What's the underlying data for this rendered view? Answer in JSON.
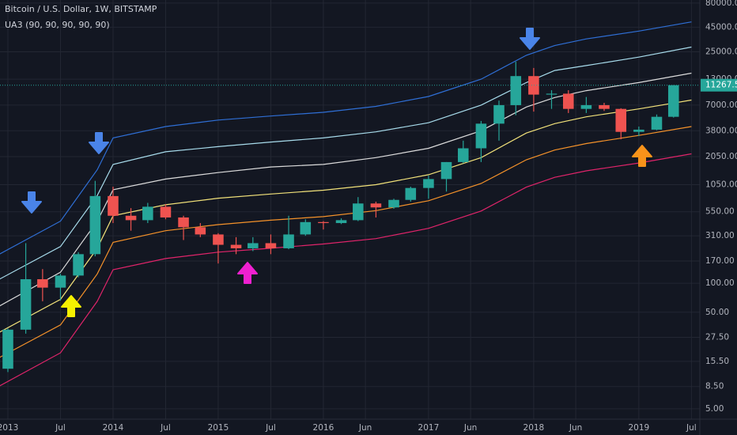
{
  "chart_data": {
    "type": "candlestick",
    "title": "Bitcoin / U.S. Dollar, 1W, BITSTAMP",
    "indicator": "UA3 (90, 90, 90, 90, 90)",
    "log_scale": true,
    "grid": true,
    "xlim": [
      2012.925,
      2019.58
    ],
    "ylim": [
      3.9,
      86000
    ],
    "xticks": [
      {
        "value": 2013,
        "label": "2013"
      },
      {
        "value": 2013.5,
        "label": "Jul"
      },
      {
        "value": 2014,
        "label": "2014"
      },
      {
        "value": 2014.5,
        "label": "Jul"
      },
      {
        "value": 2015,
        "label": "2015"
      },
      {
        "value": 2015.5,
        "label": "Jul"
      },
      {
        "value": 2016,
        "label": "2016"
      },
      {
        "value": 2016.4,
        "label": "Jun"
      },
      {
        "value": 2017,
        "label": "2017"
      },
      {
        "value": 2017.4,
        "label": "Jun"
      },
      {
        "value": 2018,
        "label": "2018"
      },
      {
        "value": 2018.4,
        "label": "Jun"
      },
      {
        "value": 2019,
        "label": "2019"
      },
      {
        "value": 2019.5,
        "label": "Jul"
      }
    ],
    "yticks": [
      {
        "value": 5,
        "label": "5.00"
      },
      {
        "value": 8.5,
        "label": "8.50"
      },
      {
        "value": 15.5,
        "label": "15.50"
      },
      {
        "value": 27.5,
        "label": "27.50"
      },
      {
        "value": 50,
        "label": "50.00"
      },
      {
        "value": 100,
        "label": "100.00"
      },
      {
        "value": 170,
        "label": "170.00"
      },
      {
        "value": 310,
        "label": "310.00"
      },
      {
        "value": 550,
        "label": "550.00"
      },
      {
        "value": 1050,
        "label": "1050.00"
      },
      {
        "value": 2050,
        "label": "2050.00"
      },
      {
        "value": 3800,
        "label": "3800.00"
      },
      {
        "value": 7000,
        "label": "7000.00"
      },
      {
        "value": 13000,
        "label": "13000.00"
      },
      {
        "value": 25000,
        "label": "25000.00"
      },
      {
        "value": 45000,
        "label": "45000.00"
      },
      {
        "value": 80000,
        "label": "80000.00"
      }
    ],
    "last_price": 11267.53,
    "up_color": "#26a69a",
    "down_color": "#ef5350",
    "candles": {
      "x": [
        2013.0,
        2013.17,
        2013.33,
        2013.5,
        2013.67,
        2013.83,
        2014.0,
        2014.17,
        2014.33,
        2014.5,
        2014.67,
        2014.83,
        2015.0,
        2015.17,
        2015.33,
        2015.5,
        2015.67,
        2015.83,
        2016.0,
        2016.17,
        2016.33,
        2016.5,
        2016.67,
        2016.83,
        2017.0,
        2017.17,
        2017.33,
        2017.5,
        2017.67,
        2017.83,
        2018.0,
        2018.17,
        2018.33,
        2018.5,
        2018.67,
        2018.83,
        2019.0,
        2019.17,
        2019.33
      ],
      "open": [
        13,
        33,
        110,
        90,
        120,
        200,
        800,
        500,
        450,
        620,
        480,
        380,
        320,
        250,
        230,
        260,
        230,
        320,
        430,
        420,
        450,
        670,
        610,
        730,
        970,
        1200,
        1800,
        2500,
        4500,
        7000,
        14000,
        9000,
        9200,
        6400,
        7000,
        6400,
        3700,
        3900,
        5300
      ],
      "high": [
        34,
        260,
        140,
        125,
        210,
        1150,
        1000,
        600,
        680,
        660,
        500,
        420,
        330,
        300,
        300,
        320,
        500,
        460,
        440,
        470,
        780,
        700,
        750,
        1000,
        1300,
        1800,
        3000,
        4800,
        7800,
        19700,
        17000,
        10000,
        10000,
        8500,
        7400,
        6500,
        4200,
        5600,
        11300
      ],
      "low": [
        12,
        30,
        65,
        66,
        115,
        190,
        420,
        350,
        420,
        460,
        280,
        300,
        160,
        200,
        215,
        200,
        225,
        310,
        360,
        410,
        440,
        480,
        590,
        700,
        750,
        890,
        1750,
        1800,
        3000,
        5500,
        6000,
        6400,
        5800,
        5800,
        6100,
        3100,
        3350,
        3850,
        5200
      ],
      "close": [
        33,
        110,
        90,
        120,
        200,
        800,
        500,
        450,
        620,
        480,
        380,
        320,
        250,
        230,
        260,
        230,
        320,
        430,
        420,
        450,
        670,
        610,
        730,
        970,
        1200,
        1800,
        2500,
        4500,
        7000,
        14000,
        9000,
        9200,
        6400,
        7000,
        6400,
        3700,
        3900,
        5300,
        11267.53
      ]
    },
    "band_x": [
      2012.92,
      2013.5,
      2013.85,
      2014,
      2014.5,
      2015,
      2015.5,
      2016,
      2016.5,
      2017,
      2017.5,
      2017.93,
      2018.2,
      2018.5,
      2019,
      2019.5
    ],
    "bands": [
      {
        "color": "#2f6fd6",
        "values": [
          200,
          440,
          1500,
          3200,
          4200,
          4900,
          5400,
          5900,
          6800,
          8600,
          13000,
          23000,
          29000,
          34000,
          41000,
          51000
        ]
      },
      {
        "color": "#a8dcec",
        "values": [
          110,
          240,
          810,
          1700,
          2300,
          2600,
          2900,
          3200,
          3700,
          4600,
          7000,
          12000,
          16000,
          18000,
          22000,
          28000
        ]
      },
      {
        "color": "#dcdcdc",
        "values": [
          58,
          130,
          440,
          930,
          1200,
          1400,
          1600,
          1700,
          2000,
          2500,
          3800,
          6700,
          8400,
          9900,
          12000,
          15000
        ]
      },
      {
        "color": "#f2e27a",
        "values": [
          31,
          68,
          230,
          500,
          650,
          760,
          840,
          920,
          1050,
          1330,
          2000,
          3600,
          4500,
          5300,
          6400,
          7900
        ]
      },
      {
        "color": "#f5922a",
        "values": [
          17,
          37,
          125,
          265,
          350,
          405,
          450,
          490,
          565,
          715,
          1080,
          1900,
          2400,
          2800,
          3400,
          4200
        ]
      },
      {
        "color": "#e0246a",
        "values": [
          8.6,
          19,
          65,
          138,
          180,
          210,
          230,
          255,
          290,
          370,
          560,
          990,
          1250,
          1460,
          1760,
          2190
        ]
      }
    ]
  }
}
